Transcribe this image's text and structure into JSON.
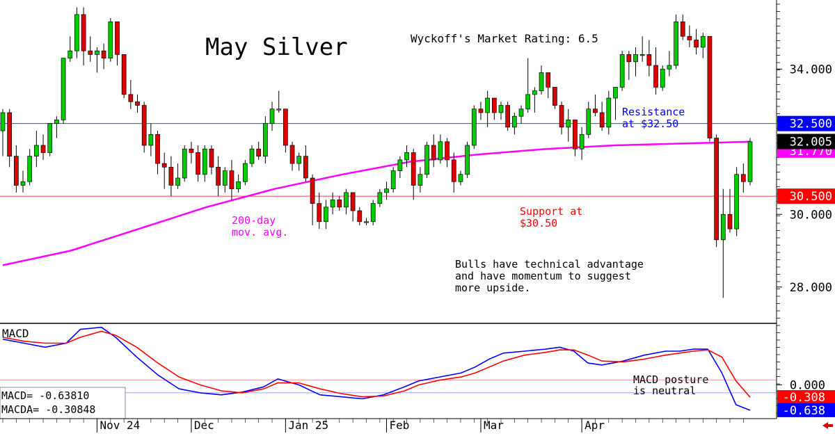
{
  "chart_data": [
    {
      "type": "candlestick",
      "title": "May Silver",
      "subtitle": "Wyckoff's Market Rating: 6.5",
      "ylim": [
        27.0,
        35.9
      ],
      "y_ticks": [
        "28.000",
        "30.000",
        "34.000"
      ],
      "y_tick_values": [
        28,
        30,
        34
      ],
      "x_tick_labels": [
        {
          "label": "Nov 24",
          "index": 14
        },
        {
          "label": "Dec",
          "index": 28
        },
        {
          "label": "Jan 25",
          "index": 42
        },
        {
          "label": "Feb",
          "index": 57
        },
        {
          "label": "Mar",
          "index": 71
        },
        {
          "label": "Apr",
          "index": 86
        }
      ],
      "candles": [
        {
          "o": 32.3,
          "h": 32.9,
          "l": 31.6,
          "c": 32.8
        },
        {
          "o": 32.8,
          "h": 32.9,
          "l": 31.3,
          "c": 31.6
        },
        {
          "o": 31.6,
          "h": 31.9,
          "l": 30.6,
          "c": 30.8
        },
        {
          "o": 30.8,
          "h": 31.2,
          "l": 30.6,
          "c": 30.9
        },
        {
          "o": 30.9,
          "h": 31.8,
          "l": 30.8,
          "c": 31.6
        },
        {
          "o": 31.6,
          "h": 32.3,
          "l": 31.3,
          "c": 31.9
        },
        {
          "o": 31.9,
          "h": 32.2,
          "l": 31.5,
          "c": 31.7
        },
        {
          "o": 31.7,
          "h": 32.5,
          "l": 31.6,
          "c": 32.5
        },
        {
          "o": 32.5,
          "h": 32.7,
          "l": 32.1,
          "c": 32.6
        },
        {
          "o": 32.6,
          "h": 34.3,
          "l": 32.5,
          "c": 34.3
        },
        {
          "o": 34.3,
          "h": 34.9,
          "l": 34.2,
          "c": 34.5
        },
        {
          "o": 34.5,
          "h": 35.7,
          "l": 34.3,
          "c": 35.5
        },
        {
          "o": 35.5,
          "h": 35.7,
          "l": 34.1,
          "c": 34.5
        },
        {
          "o": 34.5,
          "h": 34.9,
          "l": 34.2,
          "c": 34.4
        },
        {
          "o": 34.4,
          "h": 34.6,
          "l": 33.9,
          "c": 34.5
        },
        {
          "o": 34.5,
          "h": 34.7,
          "l": 34.0,
          "c": 34.3
        },
        {
          "o": 34.3,
          "h": 35.4,
          "l": 34.2,
          "c": 35.3
        },
        {
          "o": 35.3,
          "h": 35.3,
          "l": 34.1,
          "c": 34.4
        },
        {
          "o": 34.4,
          "h": 34.4,
          "l": 33.2,
          "c": 33.3
        },
        {
          "o": 33.3,
          "h": 33.7,
          "l": 32.9,
          "c": 33.1
        },
        {
          "o": 33.1,
          "h": 33.3,
          "l": 32.8,
          "c": 33.0
        },
        {
          "o": 33.0,
          "h": 33.1,
          "l": 31.7,
          "c": 31.9
        },
        {
          "o": 31.9,
          "h": 32.5,
          "l": 31.6,
          "c": 32.2
        },
        {
          "o": 32.2,
          "h": 32.3,
          "l": 31.1,
          "c": 31.4
        },
        {
          "o": 31.4,
          "h": 31.7,
          "l": 30.7,
          "c": 31.3
        },
        {
          "o": 31.3,
          "h": 31.6,
          "l": 30.5,
          "c": 30.8
        },
        {
          "o": 30.8,
          "h": 31.4,
          "l": 30.7,
          "c": 31.0
        },
        {
          "o": 31.0,
          "h": 31.9,
          "l": 30.9,
          "c": 31.8
        },
        {
          "o": 31.8,
          "h": 32.0,
          "l": 31.4,
          "c": 31.7
        },
        {
          "o": 31.7,
          "h": 31.9,
          "l": 30.9,
          "c": 31.1
        },
        {
          "o": 31.1,
          "h": 31.9,
          "l": 30.9,
          "c": 31.8
        },
        {
          "o": 31.8,
          "h": 31.9,
          "l": 31.1,
          "c": 31.3
        },
        {
          "o": 31.3,
          "h": 31.6,
          "l": 30.5,
          "c": 30.8
        },
        {
          "o": 30.8,
          "h": 31.3,
          "l": 30.6,
          "c": 31.2
        },
        {
          "o": 31.2,
          "h": 31.5,
          "l": 30.4,
          "c": 30.7
        },
        {
          "o": 30.7,
          "h": 31.1,
          "l": 30.6,
          "c": 30.9
        },
        {
          "o": 30.9,
          "h": 31.5,
          "l": 30.8,
          "c": 31.4
        },
        {
          "o": 31.4,
          "h": 31.9,
          "l": 31.3,
          "c": 31.8
        },
        {
          "o": 31.8,
          "h": 32.0,
          "l": 31.5,
          "c": 31.6
        },
        {
          "o": 31.6,
          "h": 32.7,
          "l": 31.4,
          "c": 32.5
        },
        {
          "o": 32.5,
          "h": 33.1,
          "l": 32.3,
          "c": 32.9
        },
        {
          "o": 32.9,
          "h": 33.4,
          "l": 32.8,
          "c": 32.9
        },
        {
          "o": 32.9,
          "h": 32.9,
          "l": 31.7,
          "c": 31.9
        },
        {
          "o": 31.9,
          "h": 32.0,
          "l": 31.2,
          "c": 31.4
        },
        {
          "o": 31.4,
          "h": 31.7,
          "l": 31.2,
          "c": 31.6
        },
        {
          "o": 31.6,
          "h": 31.9,
          "l": 30.9,
          "c": 31.0
        },
        {
          "o": 31.0,
          "h": 31.1,
          "l": 29.7,
          "c": 30.3
        },
        {
          "o": 30.3,
          "h": 30.6,
          "l": 29.6,
          "c": 29.8
        },
        {
          "o": 29.8,
          "h": 30.4,
          "l": 29.6,
          "c": 30.2
        },
        {
          "o": 30.2,
          "h": 30.6,
          "l": 30.0,
          "c": 30.4
        },
        {
          "o": 30.4,
          "h": 30.5,
          "l": 30.1,
          "c": 30.2
        },
        {
          "o": 30.2,
          "h": 30.7,
          "l": 30.0,
          "c": 30.6
        },
        {
          "o": 30.6,
          "h": 30.6,
          "l": 29.8,
          "c": 30.1
        },
        {
          "o": 30.1,
          "h": 30.2,
          "l": 29.7,
          "c": 29.8
        },
        {
          "o": 29.8,
          "h": 29.9,
          "l": 29.7,
          "c": 29.8
        },
        {
          "o": 29.8,
          "h": 30.4,
          "l": 29.7,
          "c": 30.3
        }
      ],
      "candles_b": [
        {
          "o": 30.3,
          "h": 30.7,
          "l": 30.2,
          "c": 30.6
        },
        {
          "o": 30.6,
          "h": 30.9,
          "l": 30.4,
          "c": 30.7
        },
        {
          "o": 30.7,
          "h": 31.3,
          "l": 30.6,
          "c": 31.2
        },
        {
          "o": 31.2,
          "h": 31.6,
          "l": 31.0,
          "c": 31.5
        },
        {
          "o": 31.5,
          "h": 31.9,
          "l": 31.3,
          "c": 31.7
        },
        {
          "o": 31.7,
          "h": 31.8,
          "l": 30.4,
          "c": 30.8
        },
        {
          "o": 30.8,
          "h": 31.3,
          "l": 30.6,
          "c": 31.1
        },
        {
          "o": 31.1,
          "h": 32.0,
          "l": 31.0,
          "c": 31.9
        },
        {
          "o": 31.9,
          "h": 32.2,
          "l": 31.3,
          "c": 31.5
        },
        {
          "o": 31.5,
          "h": 32.2,
          "l": 31.4,
          "c": 32.0
        },
        {
          "o": 32.0,
          "h": 32.1,
          "l": 31.3,
          "c": 31.5
        },
        {
          "o": 31.5,
          "h": 31.7,
          "l": 30.6,
          "c": 30.9
        },
        {
          "o": 30.9,
          "h": 31.2,
          "l": 30.8,
          "c": 31.1
        },
        {
          "o": 31.1,
          "h": 32.0,
          "l": 31.0,
          "c": 31.9
        },
        {
          "o": 31.9,
          "h": 33.0,
          "l": 31.8,
          "c": 32.9
        },
        {
          "o": 32.9,
          "h": 33.1,
          "l": 32.6,
          "c": 32.8
        },
        {
          "o": 32.8,
          "h": 33.4,
          "l": 32.4,
          "c": 33.2
        },
        {
          "o": 33.2,
          "h": 33.2,
          "l": 32.6,
          "c": 32.8
        },
        {
          "o": 32.8,
          "h": 33.1,
          "l": 32.6,
          "c": 33.0
        },
        {
          "o": 33.0,
          "h": 33.1,
          "l": 32.3,
          "c": 32.4
        },
        {
          "o": 32.4,
          "h": 32.8,
          "l": 32.2,
          "c": 32.7
        },
        {
          "o": 32.7,
          "h": 33.0,
          "l": 32.5,
          "c": 32.9
        },
        {
          "o": 32.9,
          "h": 34.3,
          "l": 32.8,
          "c": 33.3
        },
        {
          "o": 33.3,
          "h": 33.5,
          "l": 32.8,
          "c": 33.4
        },
        {
          "o": 33.4,
          "h": 34.1,
          "l": 33.3,
          "c": 33.9
        },
        {
          "o": 33.9,
          "h": 33.9,
          "l": 33.2,
          "c": 33.5
        },
        {
          "o": 33.5,
          "h": 33.5,
          "l": 32.9,
          "c": 33.0
        },
        {
          "o": 33.0,
          "h": 33.1,
          "l": 32.2,
          "c": 32.4
        },
        {
          "o": 32.4,
          "h": 32.9,
          "l": 32.0,
          "c": 32.6
        },
        {
          "o": 32.6,
          "h": 32.6,
          "l": 31.6,
          "c": 31.8
        },
        {
          "o": 31.8,
          "h": 32.4,
          "l": 31.5,
          "c": 32.2
        },
        {
          "o": 32.2,
          "h": 33.1,
          "l": 32.1,
          "c": 32.9
        },
        {
          "o": 32.9,
          "h": 33.3,
          "l": 32.7,
          "c": 32.8
        },
        {
          "o": 32.8,
          "h": 33.1,
          "l": 32.3,
          "c": 32.4
        },
        {
          "o": 32.4,
          "h": 33.4,
          "l": 32.2,
          "c": 33.2
        },
        {
          "o": 33.2,
          "h": 33.5,
          "l": 32.6,
          "c": 33.5
        },
        {
          "o": 33.5,
          "h": 34.5,
          "l": 33.4,
          "c": 34.4
        },
        {
          "o": 34.4,
          "h": 34.5,
          "l": 33.7,
          "c": 34.2
        },
        {
          "o": 34.2,
          "h": 34.6,
          "l": 33.8,
          "c": 34.4
        },
        {
          "o": 34.4,
          "h": 34.9,
          "l": 34.2,
          "c": 34.4
        },
        {
          "o": 34.4,
          "h": 34.8,
          "l": 33.8,
          "c": 34.1
        },
        {
          "o": 34.1,
          "h": 34.6,
          "l": 33.3,
          "c": 33.5
        },
        {
          "o": 33.5,
          "h": 34.1,
          "l": 33.4,
          "c": 34.0
        },
        {
          "o": 34.0,
          "h": 34.5,
          "l": 33.8,
          "c": 34.1
        },
        {
          "o": 34.1,
          "h": 35.5,
          "l": 34.0,
          "c": 35.3
        },
        {
          "o": 35.3,
          "h": 35.5,
          "l": 34.8,
          "c": 34.9
        },
        {
          "o": 34.9,
          "h": 35.2,
          "l": 34.6,
          "c": 34.8
        },
        {
          "o": 34.8,
          "h": 35.1,
          "l": 34.4,
          "c": 34.6
        },
        {
          "o": 34.6,
          "h": 35.0,
          "l": 34.3,
          "c": 34.9
        },
        {
          "o": 34.9,
          "h": 34.9,
          "l": 32.0,
          "c": 32.1
        },
        {
          "o": 32.1,
          "h": 32.2,
          "l": 29.1,
          "c": 29.3
        },
        {
          "o": 29.3,
          "h": 30.7,
          "l": 27.7,
          "c": 30.0
        },
        {
          "o": 30.0,
          "h": 30.7,
          "l": 29.5,
          "c": 29.6
        },
        {
          "o": 29.6,
          "h": 31.3,
          "l": 29.4,
          "c": 31.1
        },
        {
          "o": 31.1,
          "h": 31.4,
          "l": 30.6,
          "c": 30.9
        },
        {
          "o": 30.9,
          "h": 32.1,
          "l": 30.8,
          "c": 32.0
        }
      ],
      "ma200_label": "200-day\nmov. avg.",
      "ma200": [
        [
          0,
          28.6
        ],
        [
          10,
          29.0
        ],
        [
          20,
          29.6
        ],
        [
          30,
          30.2
        ],
        [
          40,
          30.7
        ],
        [
          50,
          31.1
        ],
        [
          60,
          31.45
        ],
        [
          70,
          31.65
        ],
        [
          80,
          31.8
        ],
        [
          90,
          31.9
        ],
        [
          100,
          31.95
        ],
        [
          110,
          32.0
        ]
      ],
      "resistance": {
        "value": 32.5,
        "label": "32.500",
        "annotation": "Resistance\nat $32.50"
      },
      "support": {
        "value": 30.5,
        "label": "30.500",
        "annotation": "Support at\n$30.50"
      },
      "last_price_label": "32.005",
      "last_price_value": 32.005,
      "ma_price_label": "31.770",
      "ma_price_value": 31.77,
      "commentary": "Bulls have technical advantage\nand have momentum to suggest\nmore upside."
    },
    {
      "type": "line",
      "title": "MACD",
      "ylim": [
        -0.85,
        1.55
      ],
      "y_ticks": [
        "0.000"
      ],
      "series": [
        {
          "name": "MACD",
          "color": "#0000ff",
          "points": [
            [
              0,
              1.15
            ],
            [
              3,
              1.05
            ],
            [
              6,
              0.95
            ],
            [
              9,
              1.05
            ],
            [
              11,
              1.4
            ],
            [
              14,
              1.45
            ],
            [
              16,
              1.2
            ],
            [
              19,
              0.7
            ],
            [
              22,
              0.25
            ],
            [
              25,
              -0.1
            ],
            [
              28,
              -0.2
            ],
            [
              31,
              -0.25
            ],
            [
              34,
              -0.18
            ],
            [
              37,
              -0.05
            ],
            [
              39,
              0.15
            ],
            [
              42,
              0.0
            ],
            [
              45,
              -0.25
            ],
            [
              48,
              -0.3
            ],
            [
              51,
              -0.35
            ],
            [
              54,
              -0.25
            ],
            [
              57,
              -0.05
            ],
            [
              59,
              0.1
            ],
            [
              62,
              0.2
            ],
            [
              65,
              0.3
            ],
            [
              67,
              0.45
            ],
            [
              69,
              0.65
            ],
            [
              71,
              0.8
            ],
            [
              74,
              0.85
            ],
            [
              77,
              0.9
            ],
            [
              79,
              0.95
            ],
            [
              81,
              0.85
            ],
            [
              83,
              0.55
            ],
            [
              85,
              0.5
            ],
            [
              88,
              0.6
            ],
            [
              91,
              0.75
            ],
            [
              94,
              0.85
            ],
            [
              96,
              0.85
            ],
            [
              98,
              0.9
            ],
            [
              100,
              0.9
            ],
            [
              102,
              0.3
            ],
            [
              104,
              -0.5
            ],
            [
              106,
              -0.64
            ]
          ]
        },
        {
          "name": "MACDA",
          "color": "#ff0000",
          "points": [
            [
              0,
              1.2
            ],
            [
              3,
              1.1
            ],
            [
              6,
              1.05
            ],
            [
              9,
              1.05
            ],
            [
              11,
              1.2
            ],
            [
              14,
              1.35
            ],
            [
              16,
              1.25
            ],
            [
              19,
              0.95
            ],
            [
              22,
              0.55
            ],
            [
              25,
              0.2
            ],
            [
              28,
              0.0
            ],
            [
              31,
              -0.15
            ],
            [
              34,
              -0.2
            ],
            [
              37,
              -0.1
            ],
            [
              39,
              0.05
            ],
            [
              42,
              0.05
            ],
            [
              45,
              -0.1
            ],
            [
              48,
              -0.22
            ],
            [
              51,
              -0.3
            ],
            [
              54,
              -0.28
            ],
            [
              57,
              -0.15
            ],
            [
              59,
              0.0
            ],
            [
              62,
              0.12
            ],
            [
              65,
              0.2
            ],
            [
              67,
              0.3
            ],
            [
              69,
              0.45
            ],
            [
              71,
              0.6
            ],
            [
              74,
              0.75
            ],
            [
              77,
              0.82
            ],
            [
              79,
              0.88
            ],
            [
              81,
              0.88
            ],
            [
              83,
              0.75
            ],
            [
              85,
              0.6
            ],
            [
              88,
              0.58
            ],
            [
              91,
              0.65
            ],
            [
              94,
              0.75
            ],
            [
              96,
              0.8
            ],
            [
              98,
              0.85
            ],
            [
              100,
              0.88
            ],
            [
              102,
              0.7
            ],
            [
              104,
              0.1
            ],
            [
              106,
              -0.31
            ]
          ]
        }
      ],
      "zero_line": 0.0,
      "signal_line_value": -0.308,
      "macd_label_value": "-0.638",
      "macda_label_value": "-0.308",
      "readout_macd": "MACD=   -0.63810",
      "readout_macda": "MACDA=  -0.30848",
      "annotation": "MACD posture\nis neutral"
    }
  ]
}
